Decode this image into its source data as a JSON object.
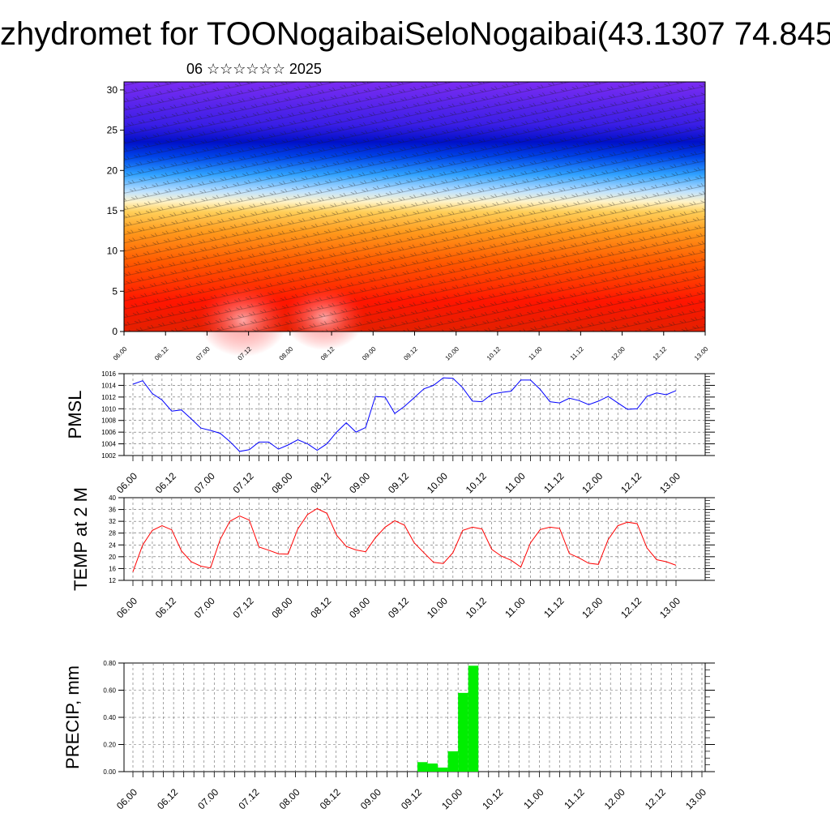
{
  "title": "zhydromet for TOONogaibaiSeloNogaibai(43.1307 74.845",
  "subtitle": "06 ☆☆☆☆☆☆ 2025",
  "colors": {
    "pmsl_line": "#0000ff",
    "temp_line": "#ff0000",
    "precip_bar": "#00ee00",
    "field_low": "#cc0000",
    "field_mid": "#ffd24d",
    "field_high": "#0000cc",
    "field_top": "#7a2aee"
  },
  "time_ticks": [
    "06.00",
    "06.12",
    "07.00",
    "07.12",
    "08.00",
    "08.12",
    "09.00",
    "09.12",
    "10.00",
    "10.12",
    "11.00",
    "11.12",
    "12.00",
    "12.12",
    "13.00"
  ],
  "chart_data": [
    {
      "type": "heatmap",
      "name": "vertical cross-section",
      "y_ticks": [
        "0",
        "5",
        "10",
        "15",
        "20",
        "25",
        "30"
      ],
      "ylim": [
        0,
        31
      ],
      "x_categories_ref": "time_ticks",
      "description_bands": [
        {
          "from": 0,
          "to": 10,
          "color": "#d40000"
        },
        {
          "from": 10,
          "to": 16,
          "color": "#ffb13d"
        },
        {
          "from": 16,
          "to": 22,
          "color": "#5ab4ff"
        },
        {
          "from": 22,
          "to": 26,
          "color": "#0010d0"
        },
        {
          "from": 26,
          "to": 31,
          "color": "#7a26f0"
        }
      ]
    },
    {
      "type": "line",
      "ylabel": "PMSL",
      "ylim": [
        1002,
        1016
      ],
      "y_ticks": [
        "1002",
        "1004",
        "1006",
        "1008",
        "1010",
        "1012",
        "1014",
        "1016"
      ],
      "x_hours_step": 3,
      "values": [
        1014.2,
        1014.8,
        1012.6,
        1011.5,
        1009.6,
        1009.8,
        1008.3,
        1006.7,
        1006.3,
        1005.8,
        1004.4,
        1002.7,
        1003.0,
        1004.3,
        1004.3,
        1003.1,
        1003.8,
        1004.7,
        1004.0,
        1002.9,
        1004.0,
        1006.0,
        1007.6,
        1006.0,
        1006.8,
        1012.1,
        1012.0,
        1009.2,
        1010.4,
        1011.9,
        1013.4,
        1014.0,
        1015.3,
        1015.2,
        1013.6,
        1011.3,
        1011.2,
        1012.5,
        1012.8,
        1013.0,
        1014.9,
        1014.9,
        1013.3,
        1011.2,
        1011.0,
        1011.8,
        1011.4,
        1010.7,
        1011.3,
        1012.1,
        1011.0,
        1009.9,
        1010.0,
        1012.1,
        1012.7,
        1012.4,
        1013.1
      ]
    },
    {
      "type": "line",
      "ylabel": "TEMP at 2 M",
      "ylim": [
        12,
        40
      ],
      "y_ticks": [
        "12",
        "16",
        "20",
        "24",
        "28",
        "32",
        "36",
        "40"
      ],
      "x_hours_step": 3,
      "values": [
        14.9,
        24.0,
        28.9,
        30.5,
        29.1,
        22.0,
        18.3,
        16.8,
        16.2,
        25.9,
        32.0,
        33.8,
        32.4,
        23.3,
        22.2,
        21.0,
        20.9,
        29.4,
        34.3,
        36.3,
        34.7,
        27.3,
        23.5,
        22.3,
        21.7,
        26.4,
        30.0,
        32.2,
        30.7,
        24.7,
        21.4,
        18.1,
        17.7,
        21.4,
        28.9,
        30.0,
        29.4,
        22.5,
        20.2,
        18.8,
        16.5,
        24.7,
        29.2,
        30.0,
        29.6,
        21.1,
        19.6,
        17.8,
        17.4,
        25.8,
        30.5,
        31.7,
        31.2,
        23.0,
        19.0,
        18.3,
        17.1
      ]
    },
    {
      "type": "bar",
      "ylabel": "PRECIP, mm",
      "ylim": [
        0,
        0.8
      ],
      "y_ticks": [
        "0.00",
        "0.20",
        "0.40",
        "0.60",
        "0.80"
      ],
      "x_hours_step": 3,
      "bars": [
        {
          "index": 28,
          "value": 0.07
        },
        {
          "index": 29,
          "value": 0.06
        },
        {
          "index": 30,
          "value": 0.03
        },
        {
          "index": 31,
          "value": 0.15
        },
        {
          "index": 32,
          "value": 0.58
        },
        {
          "index": 33,
          "value": 0.78
        }
      ]
    }
  ]
}
